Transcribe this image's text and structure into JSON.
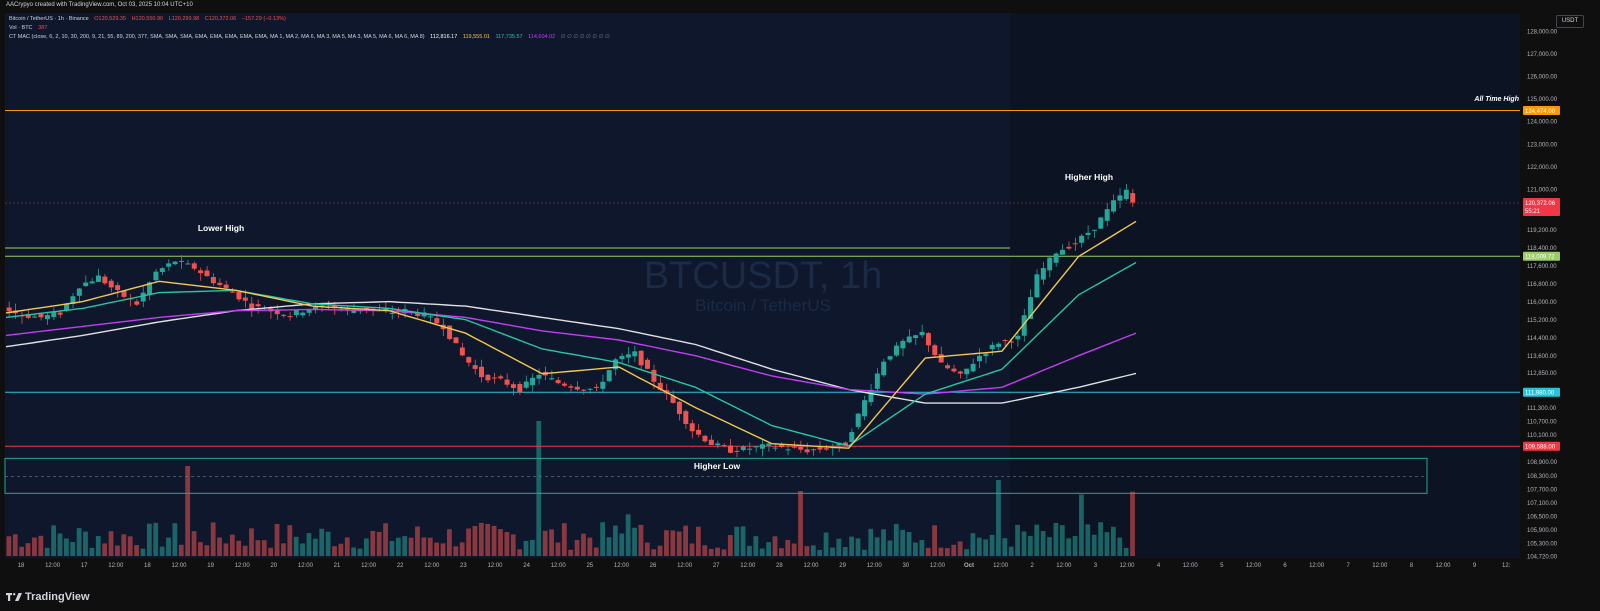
{
  "header": {
    "created": "AACrypyo created with TradingView.com, Oct 03, 2025 10:04 UTC+10"
  },
  "legend": {
    "line1_symbol": "Bitcoin / TetherUS · 1h · Binance",
    "line1_open": "O120,529.35",
    "line1_high": "H120,550.90",
    "line1_low": "L120,299.98",
    "line1_close": "C120,372.06",
    "line1_change": "−157.29 (−0.13%)",
    "line2_label": "Vol · BTC",
    "line2_value": "387",
    "line3_label": "CT MAC (close, 6, 2, 10, 30, 200, 9, 21, 55, 89, 200, 377, SMA, SMA, SMA, EMA, EMA, EMA, EMA, EMA, MA 1, MA 2, MA 6, MA 3, MA 5, MA 3, MA 5, MA 6, MA 6, MA 8)",
    "line3_v1": "112,816.17",
    "line3_v2": "119,555.01",
    "line3_v3": "117,735.57",
    "line3_v4": "114,604.02",
    "line3_v5": "∅ ∅ ∅ ∅ ∅ ∅ ∅ ∅"
  },
  "watermark": {
    "symbol": "BTCUSDT, 1h",
    "name": "Bitcoin / TetherUS"
  },
  "currency_button": "USDT",
  "footer": {
    "brand": "TradingView"
  },
  "colors": {
    "ema_fast": "#f2c94c",
    "ema_mid": "#26c6a2",
    "ema_slow": "#c33df2",
    "sma_long": "#e0e0e0",
    "up": "#26a69a",
    "down": "#ef5350",
    "ath_line": "#ff9800",
    "level_green": "#9ccc65",
    "level_cyan": "#26c6da",
    "level_red": "#f23645",
    "range_box": "#26a69a"
  },
  "chart_data": {
    "type": "candlestick",
    "title": "BTCUSDT, 1h",
    "subtitle": "Bitcoin / TetherUS",
    "x_ticks": [
      "18",
      "12:00",
      "17",
      "12:00",
      "18",
      "12:00",
      "19",
      "12:00",
      "20",
      "12:00",
      "21",
      "12:00",
      "22",
      "12:00",
      "23",
      "12:00",
      "24",
      "12:00",
      "25",
      "12:00",
      "26",
      "12:00",
      "27",
      "12:00",
      "28",
      "12:00",
      "29",
      "12:00",
      "30",
      "12:00",
      "Oct",
      "12:00",
      "2",
      "12:00",
      "3",
      "12:00",
      "4",
      "12:00",
      "5",
      "12:00",
      "6",
      "12:00",
      "7",
      "12:00",
      "8",
      "12:00",
      "9",
      "12:"
    ],
    "y_ticks": [
      128000,
      127000,
      126000,
      125000,
      124000,
      123000,
      122000,
      121000,
      119200,
      118400,
      117600,
      116800,
      116000,
      115200,
      114400,
      113600,
      112850,
      111300,
      110700,
      110100,
      108900,
      108300,
      107700,
      107100,
      106500,
      105900,
      105300,
      104720
    ],
    "y_tick_labels": [
      "128,000.00",
      "127,000.00",
      "126,000.00",
      "125,000.00",
      "124,000.00",
      "123,000.00",
      "122,000.00",
      "121,000.00",
      "119,200.00",
      "118,400.00",
      "117,600.00",
      "116,800.00",
      "116,000.00",
      "115,200.00",
      "114,400.00",
      "113,600.00",
      "112,850.00",
      "111,300.00",
      "110,700.00",
      "110,100.00",
      "108,900.00",
      "108,300.00",
      "107,700.00",
      "107,100.00",
      "106,500.00",
      "105,900.00",
      "105,300.00",
      "104,720.00"
    ],
    "horizontal_levels": [
      {
        "name": "All Time High",
        "value": 124474,
        "label": "124,474.00",
        "color": "#ff9800"
      },
      {
        "name": "resistance",
        "value": 118009.72,
        "label": "118,009.72",
        "color": "#9ccc65"
      },
      {
        "name": "support",
        "value": 111980,
        "label": "111,980.00",
        "color": "#26c6da"
      },
      {
        "name": "support-2",
        "value": 109588,
        "label": "109,588.00",
        "color": "#f23645"
      }
    ],
    "last_price": {
      "value": 120372.06,
      "label": "120,372.06",
      "countdown": "55:21"
    },
    "annotations": [
      {
        "text": "All Time High",
        "price": 124474
      },
      {
        "text": "Higher High",
        "price": 121300
      },
      {
        "text": "Lower High",
        "price": 118550
      },
      {
        "text": "Higher Low",
        "price": 108300
      }
    ],
    "range_box": {
      "top": 109050,
      "mid": 108250,
      "bottom": 107500
    },
    "price_path": [
      [
        0,
        115700
      ],
      [
        3,
        115400
      ],
      [
        6,
        115300
      ],
      [
        9,
        115500
      ],
      [
        12,
        116700
      ],
      [
        15,
        117100
      ],
      [
        18,
        116400
      ],
      [
        21,
        115900
      ],
      [
        24,
        117300
      ],
      [
        27,
        117800
      ],
      [
        30,
        117500
      ],
      [
        33,
        116900
      ],
      [
        36,
        116400
      ],
      [
        39,
        115800
      ],
      [
        42,
        115600
      ],
      [
        45,
        115400
      ],
      [
        48,
        115700
      ],
      [
        51,
        115800
      ],
      [
        54,
        115600
      ],
      [
        57,
        115700
      ],
      [
        60,
        115500
      ],
      [
        63,
        115600
      ],
      [
        66,
        115400
      ],
      [
        69,
        114900
      ],
      [
        72,
        113600
      ],
      [
        75,
        112700
      ],
      [
        78,
        112500
      ],
      [
        81,
        112100
      ],
      [
        84,
        112800
      ],
      [
        87,
        112400
      ],
      [
        90,
        112200
      ],
      [
        93,
        112100
      ],
      [
        96,
        113400
      ],
      [
        99,
        113700
      ],
      [
        102,
        112500
      ],
      [
        105,
        111500
      ],
      [
        108,
        110300
      ],
      [
        111,
        109700
      ],
      [
        114,
        109400
      ],
      [
        117,
        109500
      ],
      [
        120,
        109600
      ],
      [
        123,
        109500
      ],
      [
        126,
        109400
      ],
      [
        129,
        109500
      ],
      [
        132,
        109700
      ],
      [
        135,
        111600
      ],
      [
        138,
        113400
      ],
      [
        141,
        114200
      ],
      [
        144,
        114600
      ],
      [
        147,
        113200
      ],
      [
        150,
        112700
      ],
      [
        153,
        113600
      ],
      [
        156,
        114200
      ],
      [
        159,
        114400
      ],
      [
        162,
        117100
      ],
      [
        165,
        118200
      ],
      [
        168,
        118600
      ],
      [
        171,
        119300
      ],
      [
        174,
        120400
      ],
      [
        176,
        120900
      ],
      [
        177,
        120372
      ]
    ],
    "ma_fast": [
      [
        0,
        115500
      ],
      [
        12,
        116000
      ],
      [
        24,
        116900
      ],
      [
        36,
        116500
      ],
      [
        48,
        115800
      ],
      [
        60,
        115600
      ],
      [
        72,
        114600
      ],
      [
        84,
        112800
      ],
      [
        96,
        113100
      ],
      [
        108,
        111300
      ],
      [
        120,
        109700
      ],
      [
        132,
        109500
      ],
      [
        144,
        113500
      ],
      [
        156,
        113800
      ],
      [
        168,
        118000
      ],
      [
        177,
        119555
      ]
    ],
    "ma_mid": [
      [
        0,
        115300
      ],
      [
        12,
        115700
      ],
      [
        24,
        116400
      ],
      [
        36,
        116500
      ],
      [
        48,
        115900
      ],
      [
        60,
        115700
      ],
      [
        72,
        115200
      ],
      [
        84,
        113900
      ],
      [
        96,
        113300
      ],
      [
        108,
        112200
      ],
      [
        120,
        110500
      ],
      [
        132,
        109600
      ],
      [
        144,
        111900
      ],
      [
        156,
        113000
      ],
      [
        168,
        116300
      ],
      [
        177,
        117736
      ]
    ],
    "ma_slow": [
      [
        0,
        114500
      ],
      [
        12,
        114900
      ],
      [
        24,
        115300
      ],
      [
        36,
        115600
      ],
      [
        48,
        115650
      ],
      [
        60,
        115600
      ],
      [
        72,
        115300
      ],
      [
        84,
        114700
      ],
      [
        96,
        114300
      ],
      [
        108,
        113600
      ],
      [
        120,
        112700
      ],
      [
        132,
        112100
      ],
      [
        144,
        111900
      ],
      [
        156,
        112200
      ],
      [
        168,
        113600
      ],
      [
        177,
        114604
      ]
    ],
    "ma_long": [
      [
        0,
        114000
      ],
      [
        12,
        114500
      ],
      [
        24,
        115100
      ],
      [
        36,
        115600
      ],
      [
        48,
        115900
      ],
      [
        60,
        116000
      ],
      [
        72,
        115800
      ],
      [
        84,
        115300
      ],
      [
        96,
        114800
      ],
      [
        108,
        114100
      ],
      [
        120,
        113000
      ],
      [
        132,
        112100
      ],
      [
        144,
        111500
      ],
      [
        156,
        111500
      ],
      [
        168,
        112200
      ],
      [
        177,
        112816
      ]
    ]
  }
}
